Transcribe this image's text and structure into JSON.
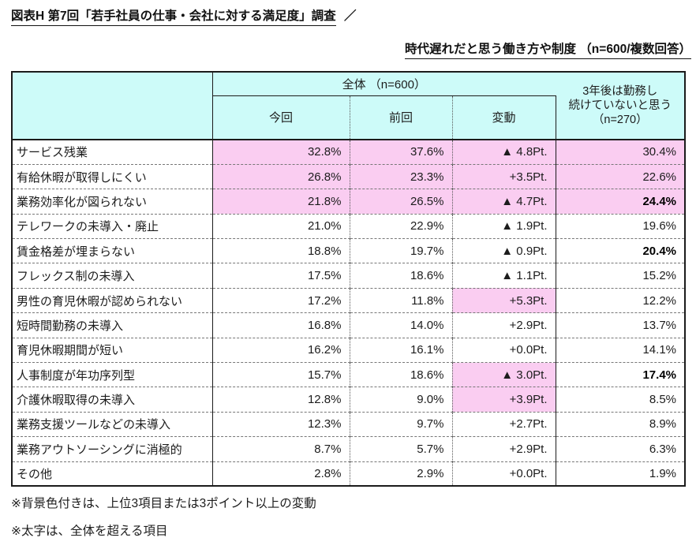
{
  "page": {
    "title": "図表H 第7回「若手社員の仕事・会社に対する満足度」調査",
    "title_suffix": "／",
    "subtitle": "時代遅れだと思う働き方や制度 （n=600/複数回答）",
    "note1": "※背景色付きは、上位3項目または3ポイント以上の変動",
    "note2": "※太字は、全体を超える項目"
  },
  "table": {
    "header": {
      "group_label": "全体 （n=600）",
      "col_now": "今回",
      "col_prev": "前回",
      "col_change": "変動",
      "future_line1": "3年後は勤務し",
      "future_line2": "続けていないと思う",
      "future_line3": "（n=270）"
    },
    "rows": [
      {
        "label": "サービス残業",
        "now": "32.8%",
        "prev": "37.6%",
        "change": "▲ 4.8Pt.",
        "future": "30.4%",
        "top3": true,
        "change_hl": true,
        "bold_future": false
      },
      {
        "label": "有給休暇が取得しにくい",
        "now": "26.8%",
        "prev": "23.3%",
        "change": "+3.5Pt.",
        "future": "22.6%",
        "top3": true,
        "change_hl": true,
        "bold_future": false
      },
      {
        "label": "業務効率化が図られない",
        "now": "21.8%",
        "prev": "26.5%",
        "change": "▲ 4.7Pt.",
        "future": "24.4%",
        "top3": true,
        "change_hl": true,
        "bold_future": true
      },
      {
        "label": "テレワークの未導入・廃止",
        "now": "21.0%",
        "prev": "22.9%",
        "change": "▲ 1.9Pt.",
        "future": "19.6%",
        "top3": false,
        "change_hl": false,
        "bold_future": false
      },
      {
        "label": "賃金格差が埋まらない",
        "now": "18.8%",
        "prev": "19.7%",
        "change": "▲ 0.9Pt.",
        "future": "20.4%",
        "top3": false,
        "change_hl": false,
        "bold_future": true
      },
      {
        "label": "フレックス制の未導入",
        "now": "17.5%",
        "prev": "18.6%",
        "change": "▲ 1.1Pt.",
        "future": "15.2%",
        "top3": false,
        "change_hl": false,
        "bold_future": false
      },
      {
        "label": "男性の育児休暇が認められない",
        "now": "17.2%",
        "prev": "11.8%",
        "change": "+5.3Pt.",
        "future": "12.2%",
        "top3": false,
        "change_hl": true,
        "bold_future": false
      },
      {
        "label": "短時間勤務の未導入",
        "now": "16.8%",
        "prev": "14.0%",
        "change": "+2.9Pt.",
        "future": "13.7%",
        "top3": false,
        "change_hl": false,
        "bold_future": false
      },
      {
        "label": "育児休暇期間が短い",
        "now": "16.2%",
        "prev": "16.1%",
        "change": "+0.0Pt.",
        "future": "14.1%",
        "top3": false,
        "change_hl": false,
        "bold_future": false
      },
      {
        "label": "人事制度が年功序列型",
        "now": "15.7%",
        "prev": "18.6%",
        "change": "▲ 3.0Pt.",
        "future": "17.4%",
        "top3": false,
        "change_hl": true,
        "bold_future": true
      },
      {
        "label": "介護休暇取得の未導入",
        "now": "12.8%",
        "prev": "9.0%",
        "change": "+3.9Pt.",
        "future": "8.5%",
        "top3": false,
        "change_hl": true,
        "bold_future": false
      },
      {
        "label": "業務支援ツールなどの未導入",
        "now": "12.3%",
        "prev": "9.7%",
        "change": "+2.7Pt.",
        "future": "8.9%",
        "top3": false,
        "change_hl": false,
        "bold_future": false
      },
      {
        "label": "業務アウトソーシングに消極的",
        "now": "8.7%",
        "prev": "5.7%",
        "change": "+2.9Pt.",
        "future": "6.3%",
        "top3": false,
        "change_hl": false,
        "bold_future": false
      },
      {
        "label": "その他",
        "now": "2.8%",
        "prev": "2.9%",
        "change": "+0.0Pt.",
        "future": "1.9%",
        "top3": false,
        "change_hl": false,
        "bold_future": false
      }
    ]
  },
  "colors": {
    "header_bg": "#CDFBF9",
    "highlight_bg": "#FACDF1",
    "border": "#1B1B1B"
  }
}
